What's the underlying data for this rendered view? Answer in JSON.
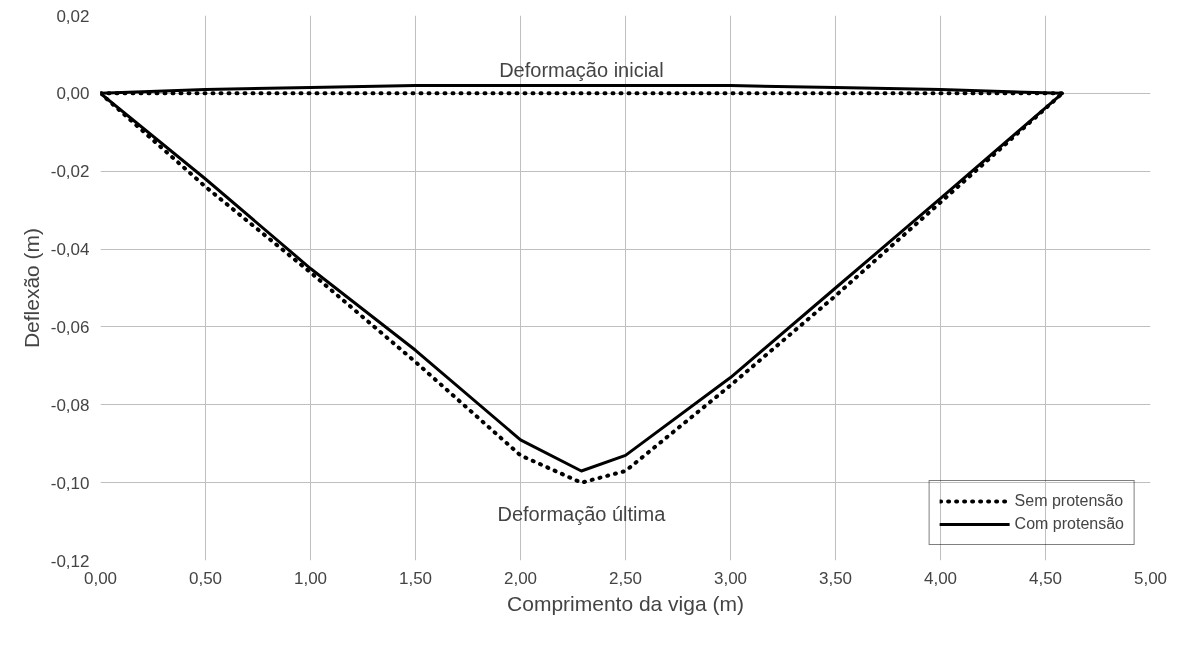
{
  "chart_data": {
    "type": "line",
    "xlabel": "Comprimento da viga (m)",
    "ylabel": "Deflexão (m)",
    "xlim": [
      0,
      5
    ],
    "ylim": [
      -0.12,
      0.02
    ],
    "xticks": [
      {
        "value": 0,
        "label": "0,00"
      },
      {
        "value": 0.5,
        "label": "0,50"
      },
      {
        "value": 1,
        "label": "1,00"
      },
      {
        "value": 1.5,
        "label": "1,50"
      },
      {
        "value": 2,
        "label": "2,00"
      },
      {
        "value": 2.5,
        "label": "2,50"
      },
      {
        "value": 3,
        "label": "3,00"
      },
      {
        "value": 3.5,
        "label": "3,50"
      },
      {
        "value": 4,
        "label": "4,00"
      },
      {
        "value": 4.5,
        "label": "4,50"
      },
      {
        "value": 5,
        "label": "5,00"
      }
    ],
    "yticks": [
      {
        "value": -0.12,
        "label": "-0,12"
      },
      {
        "value": -0.1,
        "label": "-0,10"
      },
      {
        "value": -0.08,
        "label": "-0,08"
      },
      {
        "value": -0.06,
        "label": "-0,06"
      },
      {
        "value": -0.04,
        "label": "-0,04"
      },
      {
        "value": -0.02,
        "label": "-0,02"
      },
      {
        "value": 0,
        "label": "0,00"
      },
      {
        "value": 0.02,
        "label": "0,02"
      }
    ],
    "grid": true,
    "legend": "bottom right",
    "marker": "none",
    "annotations": [
      "Deformação inicial",
      "Deformação última"
    ],
    "series": [
      {
        "name": "Sem protensão",
        "color": "#000000",
        "line_style": "dotted",
        "x": [
          0,
          0.5,
          1,
          1.5,
          2,
          2.29,
          2.5,
          3,
          3.5,
          4,
          4.58
        ],
        "values": [
          0,
          -0.024,
          -0.046,
          -0.069,
          -0.093,
          -0.1,
          -0.097,
          -0.075,
          -0.052,
          -0.028,
          0
        ]
      },
      {
        "name": "Com protensão",
        "color": "#000000",
        "line_style": "solid",
        "x": [
          0,
          0.5,
          1,
          1.5,
          2,
          2.29,
          2.5,
          3,
          3.5,
          4,
          4.58
        ],
        "values": [
          0,
          -0.022,
          -0.045,
          -0.066,
          -0.089,
          -0.097,
          -0.093,
          -0.073,
          -0.05,
          -0.027,
          0
        ]
      },
      {
        "color": "#000000",
        "line_style": "dotted",
        "x": [
          0,
          1,
          2,
          3,
          4,
          4.58
        ],
        "values": [
          0,
          0,
          0,
          0,
          0,
          0
        ]
      },
      {
        "color": "#000000",
        "line_style": "solid",
        "x": [
          0,
          0.5,
          1,
          1.5,
          2,
          2.5,
          3,
          3.5,
          4,
          4.58
        ],
        "values": [
          0,
          0.001,
          0.0015,
          0.002,
          0.002,
          0.002,
          0.002,
          0.0015,
          0.001,
          0
        ]
      }
    ]
  }
}
